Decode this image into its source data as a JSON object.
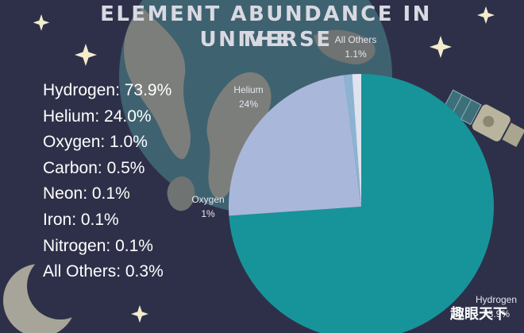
{
  "title_line1": "ELEMENT ABUNDANCE IN THE",
  "title_line2": "UNIVERSE",
  "legend": [
    {
      "name": "Hydrogen",
      "value": "73.9%"
    },
    {
      "name": "Helium",
      "value": "24.0%"
    },
    {
      "name": "Oxygen",
      "value": "1.0%"
    },
    {
      "name": "Carbon",
      "value": "0.5%"
    },
    {
      "name": "Neon",
      "value": "0.1%"
    },
    {
      "name": "Iron",
      "value": "0.1%"
    },
    {
      "name": "Nitrogen",
      "value": "0.1%"
    },
    {
      "name": "All Others",
      "value": "0.3%"
    }
  ],
  "watermark": "趣眼天下",
  "colors": {
    "background": "#2e3049",
    "hydrogen": "#17949a",
    "helium": "#a9b8da",
    "oxygen": "#8cb4d2",
    "others": "#dfe3ef",
    "slice_label": "#e6e6ee"
  },
  "icons": [
    "star-icon",
    "moon-icon",
    "satellite-icon",
    "earth-globe"
  ],
  "chart_data": {
    "type": "pie",
    "slices": [
      {
        "label": "Hydrogen",
        "value": 73.9,
        "display": "73.9%",
        "color": "#17949a"
      },
      {
        "label": "Helium",
        "value": 24,
        "display": "24%",
        "color": "#a9b8da"
      },
      {
        "label": "Oxygen",
        "value": 1,
        "display": "1%",
        "color": "#8cb4d2"
      },
      {
        "label": "All Others",
        "value": 1.1,
        "display": "1.1%",
        "color": "#dfe3ef"
      }
    ]
  }
}
